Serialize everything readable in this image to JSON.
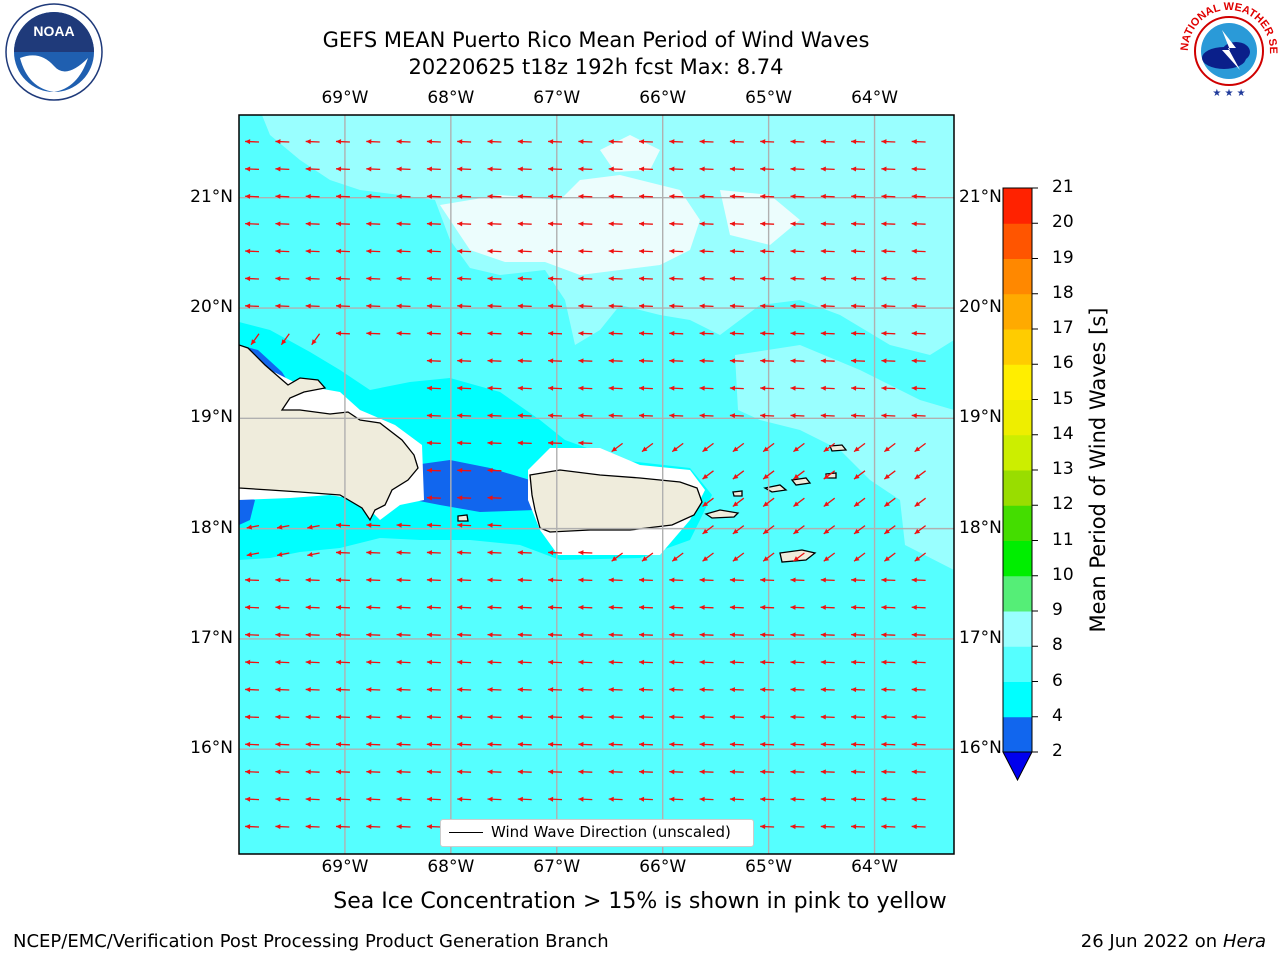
{
  "title": {
    "line1": "GEFS MEAN Puerto Rico Mean Period of Wind Waves",
    "line2": "20220625 t18z 192h fcst   Max: 8.74"
  },
  "map": {
    "lon_ticks": [
      "69°W",
      "68°W",
      "67°W",
      "66°W",
      "65°W",
      "64°W"
    ],
    "lat_ticks": [
      "21°N",
      "20°N",
      "19°N",
      "18°N",
      "17°N",
      "16°N"
    ],
    "extent": {
      "lon_min": -70,
      "lon_max": -63.25,
      "lat_min": 15.05,
      "lat_max": 21.75
    },
    "ocean_color": "#55ffff",
    "land_color": "#efecdc",
    "arrow_color": "#ee1111",
    "grid_color": "#b0b0b0",
    "legend_label": "Wind Wave Direction (unscaled)"
  },
  "colorbar": {
    "title": "Mean Period of Wind Waves [s]",
    "levels": [
      "2",
      "4",
      "6",
      "8",
      "9",
      "10",
      "11",
      "12",
      "13",
      "14",
      "15",
      "16",
      "17",
      "18",
      "19",
      "20",
      "21"
    ],
    "colors": [
      "#1166ee",
      "#00ffff",
      "#55ffff",
      "#99ffff",
      "#55ee77",
      "#00ee00",
      "#44dd00",
      "#99dd00",
      "#ccee00",
      "#eeee00",
      "#ffee00",
      "#ffcc00",
      "#ffaa00",
      "#ff8800",
      "#ff5500",
      "#ff2200"
    ],
    "under_color": "#0000ee"
  },
  "subtitle": "Sea Ice Concentration > 15% is shown in pink to yellow",
  "footer": {
    "left": "NCEP/EMC/Verification Post Processing Product Generation Branch",
    "date": "26 Jun 2022 on",
    "host": "Hera"
  },
  "logos": {
    "noaa_text": "NOAA",
    "nws_text": "NATIONAL WEATHER SERVICE"
  }
}
